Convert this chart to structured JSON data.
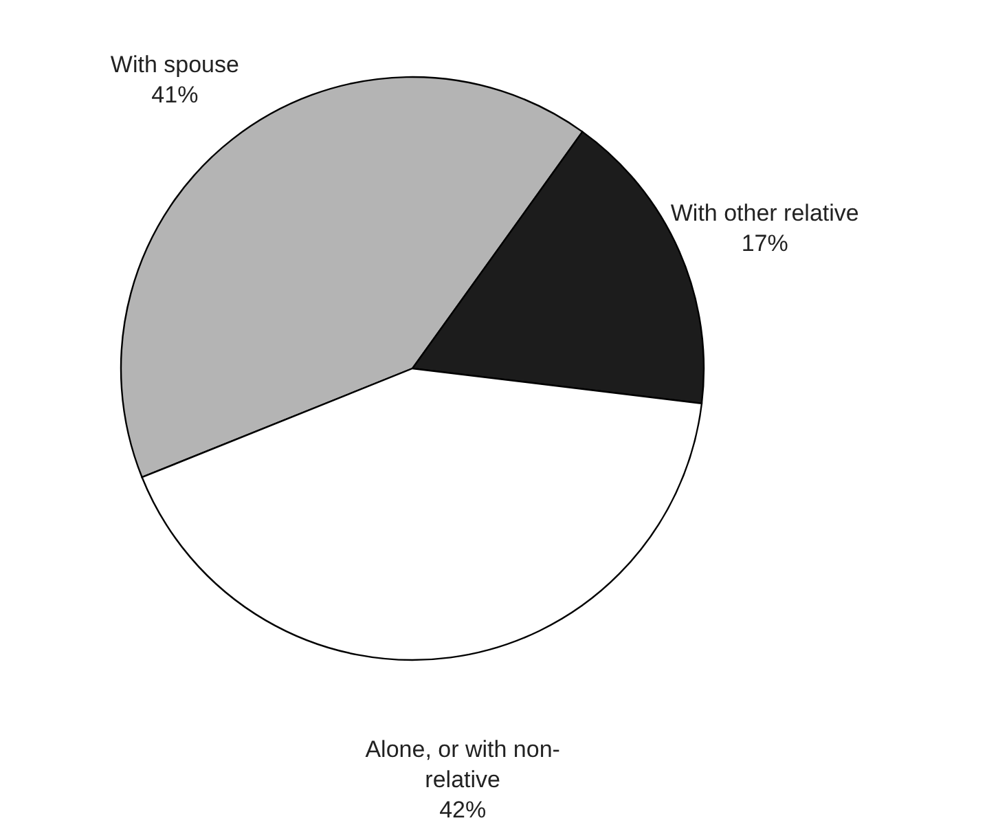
{
  "chart_data": {
    "type": "pie",
    "categories": [
      "With spouse",
      "With other relative",
      "Alone, or with non-relative"
    ],
    "values": [
      41,
      17,
      42
    ],
    "value_labels": [
      "41%",
      "17%",
      "42%"
    ],
    "colors": [
      "#b4b4b4",
      "#1c1c1c",
      "#ffffff"
    ]
  }
}
